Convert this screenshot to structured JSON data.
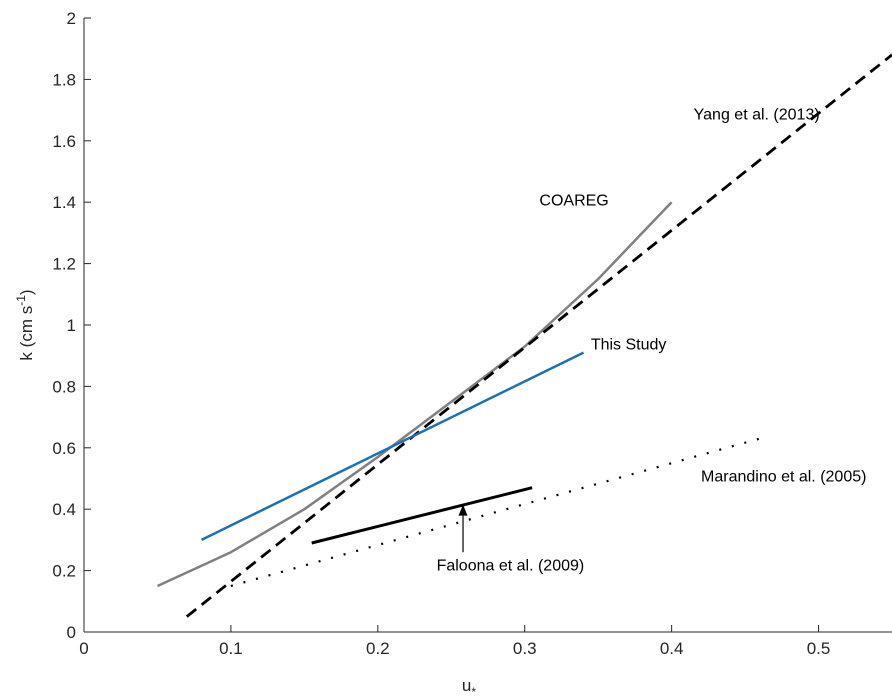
{
  "chart_data": {
    "type": "line",
    "xlabel": "u",
    "xlabel_sub": "*",
    "ylabel_pre": "k (cm s",
    "ylabel_sup": "-1",
    "ylabel_post": ")",
    "xlim": [
      0,
      0.55
    ],
    "ylim": [
      0,
      2
    ],
    "x_ticks": [
      0,
      0.1,
      0.2,
      0.3,
      0.4,
      0.5
    ],
    "x_tick_labels": [
      "0",
      "0.1",
      "0.2",
      "0.3",
      "0.4",
      "0.5"
    ],
    "y_ticks": [
      0,
      0.2,
      0.4,
      0.6,
      0.8,
      1,
      1.2,
      1.4,
      1.6,
      1.8,
      2
    ],
    "y_tick_labels": [
      "0",
      "0.2",
      "0.4",
      "0.6",
      "0.8",
      "1",
      "1.2",
      "1.4",
      "1.6",
      "1.8",
      "2"
    ],
    "grid": false,
    "series": [
      {
        "name": "COAREG",
        "color": "#808080",
        "dash": "solid",
        "x": [
          0.05,
          0.1,
          0.15,
          0.2,
          0.25,
          0.3,
          0.35,
          0.4
        ],
        "y": [
          0.15,
          0.26,
          0.4,
          0.57,
          0.75,
          0.93,
          1.15,
          1.4
        ]
      },
      {
        "name": "Yang et al. (2013)",
        "color": "#000000",
        "dash": "dashed",
        "x": [
          0.07,
          0.55
        ],
        "y": [
          0.05,
          1.88
        ]
      },
      {
        "name": "This Study",
        "color": "#1f6fb4",
        "dash": "solid",
        "x": [
          0.08,
          0.34
        ],
        "y": [
          0.3,
          0.91
        ]
      },
      {
        "name": "Marandino et al. (2005)",
        "color": "#000000",
        "dash": "dotted",
        "x": [
          0.1,
          0.46
        ],
        "y": [
          0.15,
          0.63
        ]
      },
      {
        "name": "Faloona et al. (2009)",
        "color": "#000000",
        "dash": "solid-thick",
        "x": [
          0.155,
          0.305
        ],
        "y": [
          0.29,
          0.47
        ]
      }
    ],
    "annotations": [
      {
        "text": "Yang et al. (2013)",
        "x": 0.415,
        "y": 1.67
      },
      {
        "text": "COAREG",
        "x": 0.31,
        "y": 1.39
      },
      {
        "text": "This Study",
        "x": 0.345,
        "y": 0.92
      },
      {
        "text": "Marandino et al. (2005)",
        "x": 0.42,
        "y": 0.49
      },
      {
        "text": "Faloona et al. (2009)",
        "x": 0.24,
        "y": 0.2
      }
    ],
    "arrow": {
      "from": [
        0.258,
        0.26
      ],
      "to": [
        0.258,
        0.415
      ]
    }
  }
}
